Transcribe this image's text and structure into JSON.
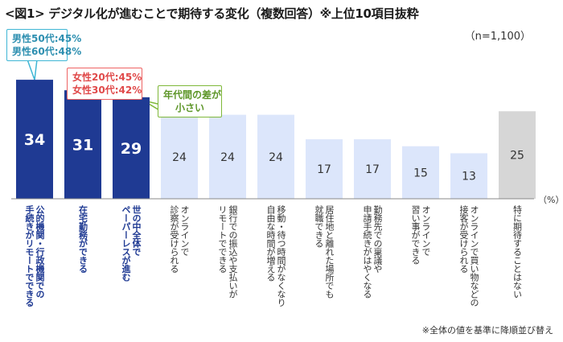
{
  "title": "<図1> デジタル化が進むことで期待する変化（複数回答）※上位10項目抜粋",
  "sample_note": "（n=1,100）",
  "footnote": "※全体の値を基準に降順並び替え",
  "unit_label": "（%）",
  "colors": {
    "highlight": "#1f3a93",
    "normal": "#dce6fb",
    "other": "#d6d6d6",
    "callout_blue": "#3fb6d5",
    "callout_red": "#ee6363",
    "callout_green": "#7fb83a"
  },
  "callouts": {
    "men": [
      "男性50代:45%",
      "男性60代:48%"
    ],
    "women": [
      "女性20代:45%",
      "女性30代:42%"
    ],
    "gap": [
      "年代間の差が",
      "小さい"
    ]
  },
  "chart_data": {
    "type": "bar",
    "title": "<図1> デジタル化が進むことで期待する変化（複数回答）※上位10項目抜粋",
    "ylabel": "（%）",
    "ylim": [
      0,
      40
    ],
    "categories": [
      "公的機関・行政機関での手続きがリモートでできる",
      "在宅勤務ができる",
      "世の中全体でペーパーレスが進む",
      "オンラインで診察が受けられる",
      "銀行での振込や支払いがリモートでできる",
      "移動・待つ時間がなくなり自由な時間が増える",
      "居住地と離れた場所でも就職できる",
      "勤務先での稟議や申請手続きがはやくなる",
      "オンラインで習い事ができる",
      "オンラインで買い物などの接客が受けられる",
      "特に期待することはない"
    ],
    "values": [
      34,
      31,
      29,
      24,
      24,
      24,
      17,
      17,
      15,
      13,
      25
    ],
    "label_lines": [
      [
        "公的機関・行政機関での",
        "手続きがリモートでできる"
      ],
      [
        "在宅勤務ができる"
      ],
      [
        "世の中全体で",
        "ペーパーレスが進む"
      ],
      [
        "オンラインで",
        "診察が受けられる"
      ],
      [
        "銀行での振込や支払いが",
        "リモートでできる"
      ],
      [
        "移動・待つ時間がなくなり",
        "自由な時間が増える"
      ],
      [
        "居住地と離れた場所でも",
        "就職できる"
      ],
      [
        "勤務先での稟議や",
        "申請手続きがはやくなる"
      ],
      [
        "オンラインで",
        "習い事ができる"
      ],
      [
        "オンラインで買い物などの",
        "接客が受けられる"
      ],
      [
        "特に期待することはない"
      ]
    ],
    "highlighted": [
      true,
      true,
      true,
      false,
      false,
      false,
      false,
      false,
      false,
      false,
      false
    ],
    "other_category": [
      false,
      false,
      false,
      false,
      false,
      false,
      false,
      false,
      false,
      false,
      true
    ]
  }
}
